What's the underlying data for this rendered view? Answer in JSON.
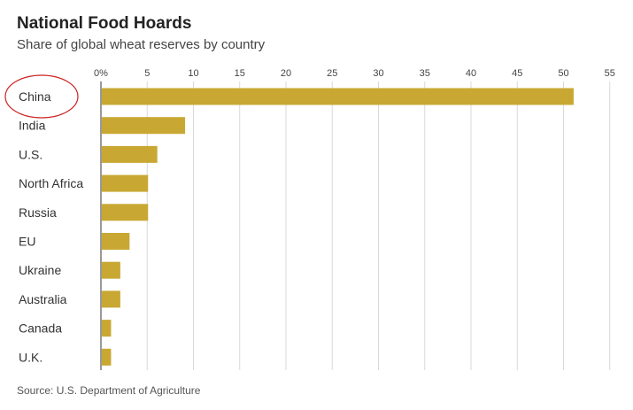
{
  "chart_data": {
    "type": "bar",
    "orientation": "horizontal",
    "title": "National Food Hoards",
    "subtitle": "Share of global wheat reserves by country",
    "source": "Source: U.S. Department of Agriculture",
    "categories": [
      "China",
      "India",
      "U.S.",
      "North Africa",
      "Russia",
      "EU",
      "Ukraine",
      "Australia",
      "Canada",
      "U.K."
    ],
    "values": [
      51,
      9,
      6,
      5,
      5,
      3,
      2,
      2,
      1,
      1
    ],
    "xlim": [
      0,
      55
    ],
    "x_ticks": [
      0,
      5,
      10,
      15,
      20,
      25,
      30,
      35,
      40,
      45,
      50,
      55
    ],
    "x_tick_labels": [
      "0%",
      "5",
      "10",
      "15",
      "20",
      "25",
      "30",
      "35",
      "40",
      "45",
      "50",
      "55"
    ],
    "xlabel": "",
    "ylabel": "",
    "grid": true,
    "tick_position": "top",
    "bar_color": "#c8a833",
    "highlight": {
      "category": "China",
      "shape": "ellipse",
      "color": "#cc2222"
    }
  }
}
